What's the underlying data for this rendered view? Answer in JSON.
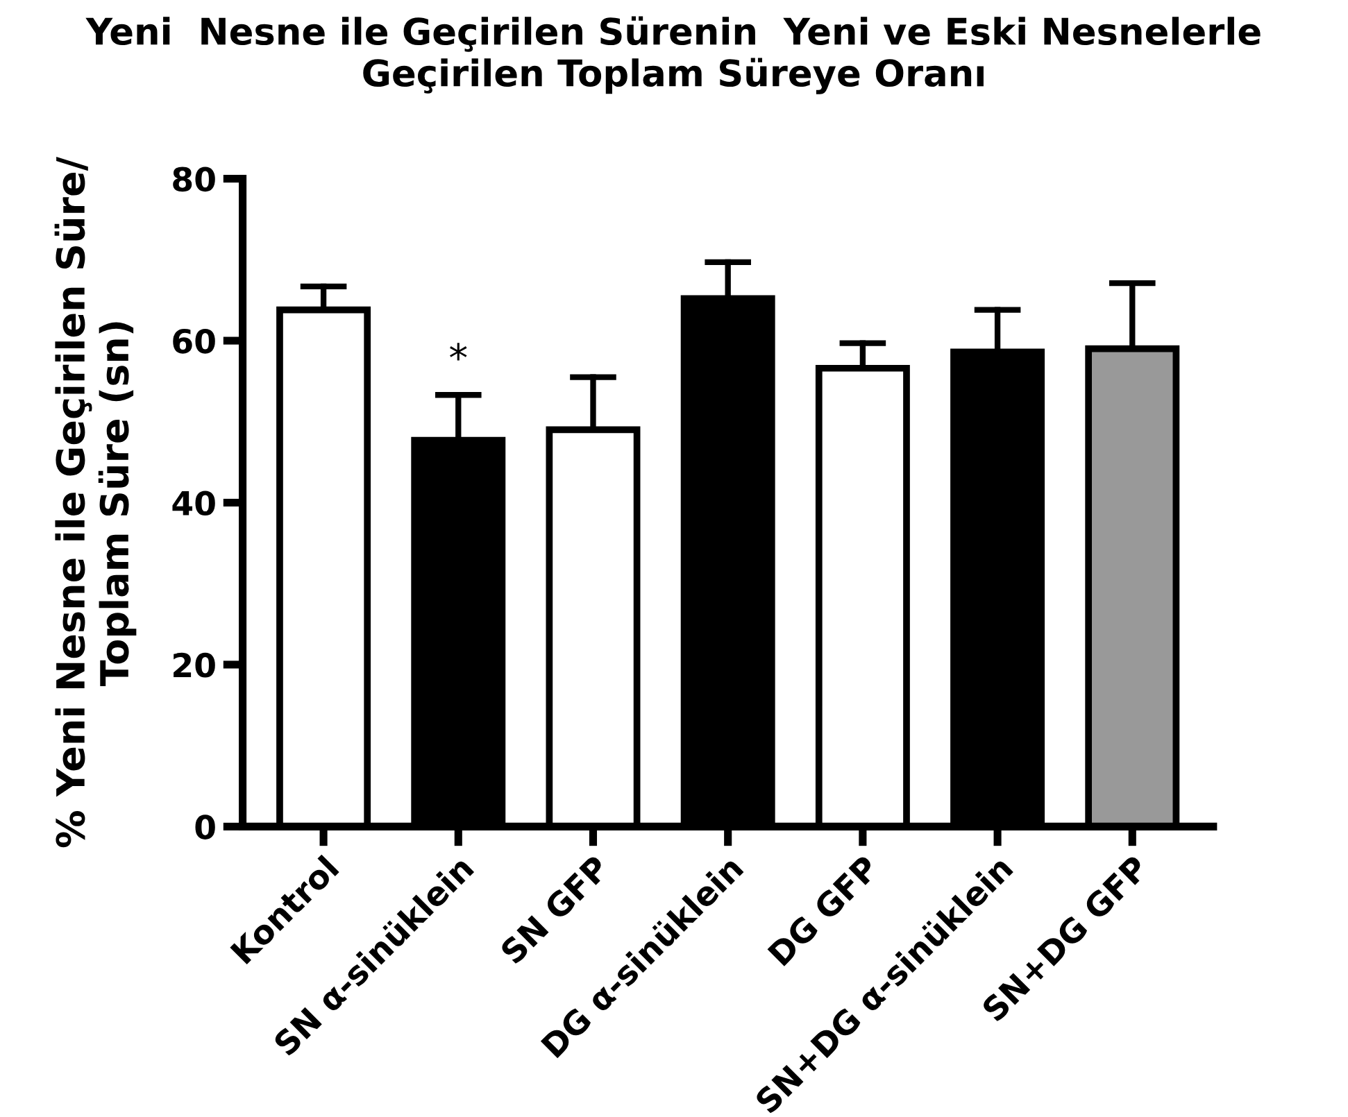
{
  "chart_data": {
    "type": "bar",
    "title": "Yeni  Nesne ile Geçirilen Sürenin  Yeni ve Eski Nesnelerle\nGeçirilen Toplam Süreye Oranı",
    "ylabel": "% Yeni Nesne ile Geçirilen Süre/\nToplam Süre (sn)",
    "categories": [
      "Kontrol",
      "SN α-sinüklein",
      "SN GFP",
      "DG α-sinüklein",
      "DG GFP",
      "SN+DG α-sinüklein",
      "SN+DG GFP"
    ],
    "values": [
      63.8,
      47.7,
      49.0,
      65.2,
      56.6,
      58.6,
      59.0
    ],
    "errors": [
      2.9,
      5.6,
      6.5,
      4.5,
      3.1,
      5.2,
      8.1
    ],
    "colors": [
      "#ffffff",
      "#000000",
      "#ffffff",
      "#000000",
      "#ffffff",
      "#000000",
      "#999999"
    ],
    "ylim": [
      0,
      80
    ],
    "yticks": [
      0,
      20,
      40,
      60,
      80
    ],
    "annotations": [
      {
        "text": "*",
        "x": "SN α-sinüklein",
        "y": 53.3
      }
    ],
    "grid": false
  }
}
